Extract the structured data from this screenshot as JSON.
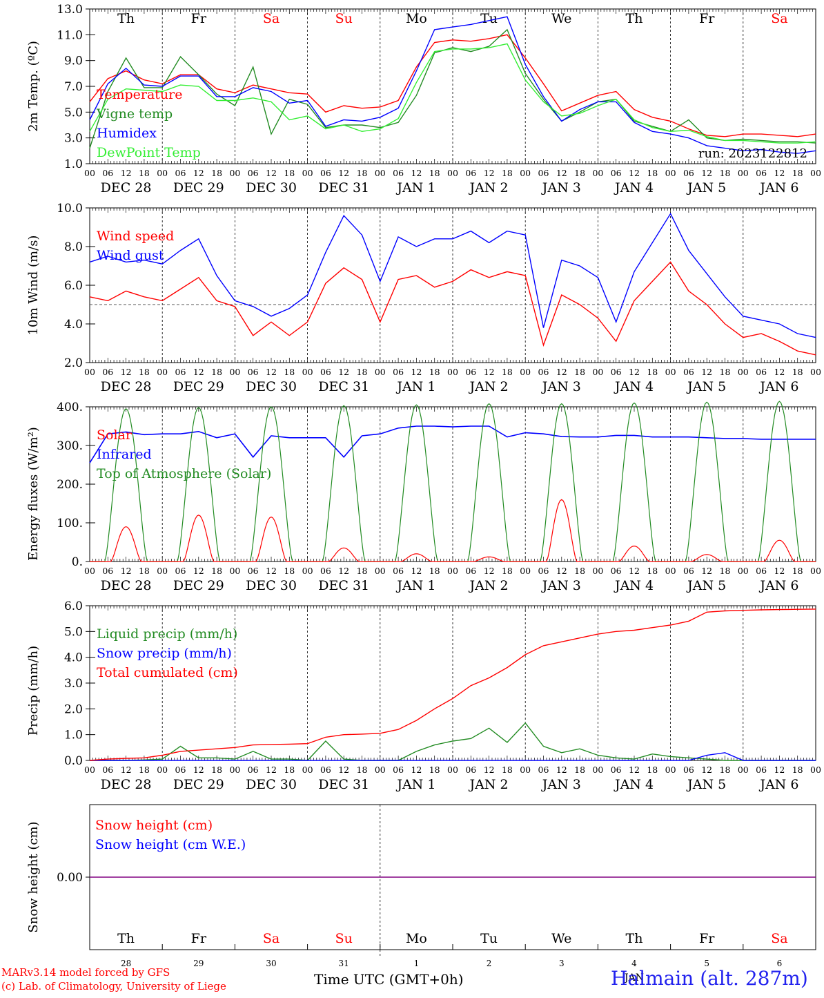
{
  "run_label": "run: 2023122812",
  "footer": {
    "line1": "MARv3.14 model forced by GFS",
    "line2": "(c) Lab. of Climatology, University of Liege",
    "xlabel": "Time UTC (GMT+0h)",
    "station": "Halmain (alt. 287m)",
    "month_label": "JAN"
  },
  "days": {
    "weekdays": [
      "Th",
      "Fr",
      "Sa",
      "Su",
      "Mo",
      "Tu",
      "We",
      "Th",
      "Fr",
      "Sa"
    ],
    "weekend_flags": [
      false,
      false,
      true,
      true,
      false,
      false,
      false,
      false,
      false,
      true
    ],
    "dates": [
      "DEC 28",
      "DEC 29",
      "DEC 30",
      "DEC 31",
      "JAN  1",
      "JAN  2",
      "JAN  3",
      "JAN  4",
      "JAN  5",
      "JAN  6"
    ],
    "day_numbers": [
      "28",
      "29",
      "30",
      "31",
      "1",
      "2",
      "3",
      "4",
      "5",
      "6"
    ],
    "hour_labels": [
      "00",
      "06",
      "12",
      "18"
    ],
    "last_hour_label": "00"
  },
  "colors": {
    "red": "#ff0000",
    "green": "#228b22",
    "blue": "#0000ff",
    "light_green": "#33ee33",
    "purple": "#800080",
    "black": "#000000"
  },
  "chart_data": [
    {
      "type": "line",
      "ylabel": "2m Temp. (ºC)",
      "ylim": [
        1.0,
        13.0
      ],
      "yticks": [
        "1.0",
        "3.0",
        "5.0",
        "7.0",
        "9.0",
        "11.0",
        "13.0"
      ],
      "x_hours": [
        0,
        6,
        12,
        18,
        24,
        30,
        36,
        42,
        48,
        54,
        60,
        66,
        72,
        78,
        84,
        90,
        96,
        102,
        108,
        114,
        120,
        126,
        132,
        138,
        144,
        150,
        156,
        162,
        168,
        174,
        180,
        186,
        192,
        198,
        204,
        210,
        216,
        222,
        228,
        234,
        240
      ],
      "series": [
        {
          "name": "Temperature",
          "color": "#ff0000",
          "values": [
            5.8,
            7.6,
            8.2,
            7.5,
            7.2,
            7.9,
            7.9,
            6.8,
            6.5,
            7.1,
            6.8,
            6.5,
            6.4,
            5.0,
            5.5,
            5.3,
            5.4,
            5.9,
            8.5,
            10.4,
            10.6,
            10.5,
            10.7,
            11.0,
            9.2,
            7.2,
            5.1,
            5.7,
            6.3,
            6.6,
            5.2,
            4.6,
            4.3,
            3.7,
            3.2,
            3.1,
            3.3,
            3.3,
            3.2,
            3.1,
            3.3
          ]
        },
        {
          "name": "Vigne temp",
          "color": "#228b22",
          "values": [
            2.2,
            6.6,
            9.2,
            6.9,
            6.9,
            9.3,
            7.9,
            6.4,
            5.5,
            8.5,
            3.3,
            6.0,
            5.6,
            3.8,
            4.0,
            4.0,
            3.8,
            4.2,
            6.3,
            9.6,
            10.0,
            9.7,
            10.1,
            11.4,
            8.0,
            6.0,
            4.3,
            5.0,
            5.8,
            6.0,
            4.3,
            3.9,
            3.5,
            4.4,
            3.0,
            2.8,
            2.9,
            2.8,
            2.7,
            2.7,
            2.6
          ]
        },
        {
          "name": "Humidex",
          "color": "#0000ff",
          "values": [
            4.4,
            7.2,
            8.4,
            7.1,
            7.0,
            7.8,
            7.8,
            6.2,
            6.2,
            6.9,
            6.6,
            5.7,
            5.9,
            3.9,
            4.4,
            4.3,
            4.6,
            5.3,
            8.2,
            11.4,
            11.6,
            11.8,
            12.1,
            12.4,
            8.7,
            6.2,
            4.3,
            5.2,
            5.8,
            5.8,
            4.2,
            3.5,
            3.3,
            3.0,
            2.4,
            2.2,
            2.0,
            2.1,
            1.9,
            1.8,
            2.0
          ]
        },
        {
          "name": "DewPoint Temp",
          "color": "#33ee33",
          "values": [
            3.5,
            6.0,
            6.8,
            6.7,
            6.6,
            7.1,
            7.0,
            5.9,
            5.9,
            6.1,
            5.8,
            4.4,
            4.7,
            3.7,
            4.0,
            3.5,
            3.7,
            4.5,
            7.3,
            9.7,
            9.9,
            9.9,
            10.0,
            10.3,
            7.5,
            5.8,
            4.7,
            4.9,
            5.5,
            6.0,
            4.4,
            3.8,
            3.5,
            3.6,
            3.1,
            2.8,
            2.8,
            2.7,
            2.6,
            2.6,
            2.7
          ]
        }
      ]
    },
    {
      "type": "line",
      "ylabel": "10m Wind (m/s)",
      "ylim": [
        2.0,
        10.0
      ],
      "yticks": [
        "2.0",
        "4.0",
        "6.0",
        "8.0",
        "10.0"
      ],
      "reference_line": 5.0,
      "x_hours": [
        0,
        6,
        12,
        18,
        24,
        30,
        36,
        42,
        48,
        54,
        60,
        66,
        72,
        78,
        84,
        90,
        96,
        102,
        108,
        114,
        120,
        126,
        132,
        138,
        144,
        150,
        156,
        162,
        168,
        174,
        180,
        186,
        192,
        198,
        204,
        210,
        216,
        222,
        228,
        234,
        240
      ],
      "series": [
        {
          "name": "Wind speed",
          "color": "#ff0000",
          "values": [
            5.4,
            5.2,
            5.7,
            5.4,
            5.2,
            5.8,
            6.4,
            5.2,
            4.9,
            3.4,
            4.1,
            3.4,
            4.1,
            6.1,
            6.9,
            6.3,
            4.1,
            6.3,
            6.5,
            5.9,
            6.2,
            6.8,
            6.4,
            6.7,
            6.5,
            2.9,
            5.5,
            5.0,
            4.3,
            3.1,
            5.2,
            6.2,
            7.2,
            5.7,
            5.0,
            4.0,
            3.3,
            3.5,
            3.1,
            2.6,
            2.4
          ]
        },
        {
          "name": "Wind gust",
          "color": "#0000ff",
          "values": [
            7.2,
            7.5,
            7.2,
            7.3,
            7.1,
            7.8,
            8.4,
            6.5,
            5.2,
            4.9,
            4.4,
            4.8,
            5.5,
            7.7,
            9.6,
            8.6,
            6.2,
            8.5,
            8.0,
            8.4,
            8.4,
            8.8,
            8.2,
            8.8,
            8.6,
            3.8,
            7.3,
            7.0,
            6.4,
            4.1,
            6.7,
            8.2,
            9.7,
            7.8,
            6.6,
            5.4,
            4.4,
            4.2,
            4.0,
            3.5,
            3.3
          ]
        }
      ]
    },
    {
      "type": "line",
      "ylabel": "Energy fluxes (W/m²)",
      "ylim": [
        0,
        400
      ],
      "yticks": [
        "0.",
        "100.",
        "200.",
        "300.",
        "400."
      ],
      "peak_hours": [
        12,
        36,
        60,
        84,
        108,
        132,
        156,
        180,
        204,
        228
      ],
      "series": [
        {
          "name": "Solar",
          "color": "#ff0000",
          "peaks": [
            90,
            120,
            115,
            35,
            20,
            12,
            160,
            40,
            18,
            55
          ]
        },
        {
          "name": "Infrared",
          "color": "#0000ff",
          "values": [
            255,
            330,
            335,
            328,
            330,
            330,
            336,
            320,
            330,
            270,
            325,
            320,
            320,
            320,
            270,
            325,
            330,
            345,
            350,
            350,
            348,
            350,
            350,
            322,
            333,
            330,
            323,
            322,
            322,
            326,
            326,
            322,
            322,
            322,
            320,
            318,
            318,
            316,
            316,
            316,
            316
          ]
        },
        {
          "name": "Top of Atmosphere (Solar)",
          "color": "#228b22",
          "peaks": [
            395,
            398,
            400,
            403,
            405,
            408,
            408,
            410,
            412,
            414
          ]
        }
      ]
    },
    {
      "type": "line",
      "ylabel": "Precip (mm/h)",
      "ylim": [
        0.0,
        6.0
      ],
      "yticks": [
        "0.0",
        "1.0",
        "2.0",
        "3.0",
        "4.0",
        "5.0",
        "6.0"
      ],
      "x_hours": [
        0,
        6,
        12,
        18,
        24,
        30,
        36,
        42,
        48,
        54,
        60,
        66,
        72,
        78,
        84,
        90,
        96,
        102,
        108,
        114,
        120,
        126,
        132,
        138,
        144,
        150,
        156,
        162,
        168,
        174,
        180,
        186,
        192,
        198,
        204,
        210,
        216,
        222,
        228,
        234,
        240
      ],
      "series": [
        {
          "name": "Liquid precip (mm/h)",
          "color": "#228b22",
          "values": [
            0,
            0,
            0,
            0.02,
            0.05,
            0.55,
            0.1,
            0.1,
            0.05,
            0.35,
            0.05,
            0.05,
            0,
            0.75,
            0.05,
            0,
            0,
            0,
            0.35,
            0.6,
            0.75,
            0.85,
            1.25,
            0.7,
            1.45,
            0.55,
            0.3,
            0.45,
            0.2,
            0.1,
            0.05,
            0.25,
            0.15,
            0.1,
            0.05,
            0,
            0,
            0,
            0,
            0,
            0
          ]
        },
        {
          "name": "Snow precip (mm/h)",
          "color": "#0000ff",
          "values": [
            0,
            0,
            0,
            0,
            0,
            0,
            0,
            0,
            0,
            0,
            0,
            0,
            0,
            0,
            0,
            0,
            0,
            0,
            0,
            0,
            0,
            0,
            0,
            0,
            0,
            0,
            0,
            0,
            0,
            0,
            0,
            0,
            0,
            0,
            0.2,
            0.3,
            0,
            0,
            0,
            0,
            0
          ]
        },
        {
          "name": "Total cumulated (cm)",
          "color": "#ff0000",
          "values": [
            0.0,
            0.05,
            0.08,
            0.1,
            0.2,
            0.35,
            0.4,
            0.45,
            0.5,
            0.6,
            0.62,
            0.63,
            0.65,
            0.9,
            1.0,
            1.02,
            1.05,
            1.2,
            1.55,
            2.0,
            2.4,
            2.9,
            3.2,
            3.6,
            4.1,
            4.45,
            4.6,
            4.75,
            4.9,
            5.0,
            5.05,
            5.15,
            5.25,
            5.4,
            5.75,
            5.8,
            5.82,
            5.84,
            5.85,
            5.86,
            5.87
          ]
        }
      ]
    },
    {
      "type": "line",
      "ylabel": "Snow height (cm)",
      "yticks": [
        "0.00"
      ],
      "series": [
        {
          "name": "Snow height (cm)",
          "color": "#ff0000",
          "values": [
            0,
            0
          ]
        },
        {
          "name": "Snow height (cm W.E.)",
          "color": "#0000ff",
          "values": [
            0,
            0
          ]
        }
      ]
    }
  ]
}
